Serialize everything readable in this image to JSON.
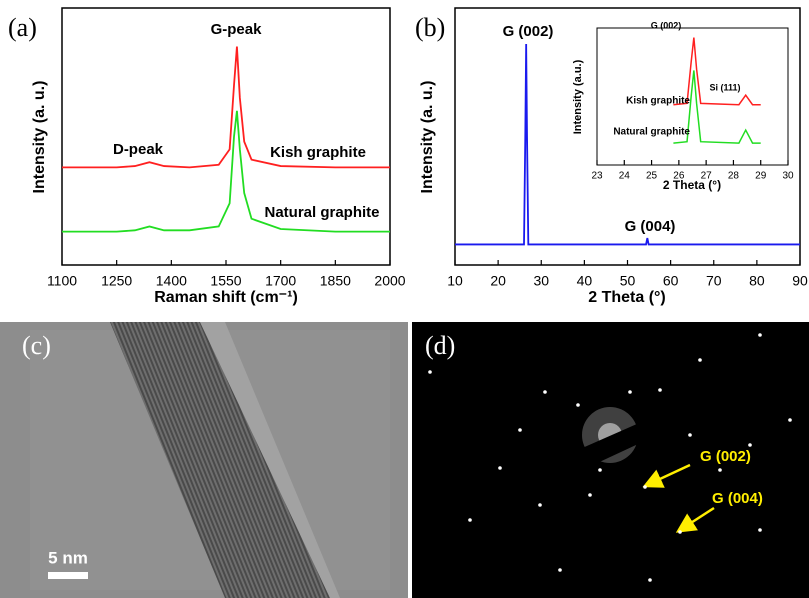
{
  "chart_data": [
    {
      "type": "line",
      "panel_label": "(a)",
      "xlabel": "Raman shift (cm⁻¹)",
      "ylabel": "Intensity (a. u.)",
      "x": [
        1100,
        1250,
        1300,
        1340,
        1380,
        1450,
        1530,
        1560,
        1572,
        1580,
        1588,
        1600,
        1620,
        1700,
        1850,
        2000
      ],
      "series": [
        {
          "name": "Kish graphite",
          "color": "#ff2020",
          "values": [
            38,
            38,
            38.5,
            40,
            38.5,
            38,
            39,
            45,
            70,
            85,
            65,
            48,
            41,
            38.5,
            38,
            38
          ]
        },
        {
          "name": "Natural graphite",
          "color": "#22dd22",
          "values": [
            13,
            13,
            13.5,
            15,
            13.5,
            13.5,
            15,
            24,
            50,
            60,
            45,
            28,
            18,
            14,
            13,
            13
          ]
        }
      ],
      "annotations": [
        "D-peak",
        "G-peak"
      ],
      "xlim": [
        1100,
        2000
      ],
      "xticks": [
        1100,
        1250,
        1400,
        1550,
        1700,
        1850,
        2000
      ],
      "ylim": [
        0,
        100
      ]
    },
    {
      "type": "line",
      "panel_label": "(b)",
      "xlabel": "2 Theta (°)",
      "ylabel": "Intensity (a. u.)",
      "x": [
        10,
        26,
        26.3,
        26.5,
        26.7,
        27,
        54.3,
        54.6,
        54.9,
        90
      ],
      "series": [
        {
          "color": "#1a1aee",
          "values": [
            8,
            8,
            50,
            86,
            50,
            8,
            8,
            10.5,
            8,
            8
          ]
        }
      ],
      "annotations": [
        "G (002)",
        "G (004)"
      ],
      "xlim": [
        10,
        90
      ],
      "xticks": [
        10,
        20,
        30,
        40,
        50,
        60,
        70,
        80,
        90
      ],
      "ylim": [
        0,
        100
      ]
    },
    {
      "type": "line",
      "xlabel": "2 Theta (°)",
      "ylabel": "Intensity (a.u.)",
      "x": [
        25.8,
        26.3,
        26.45,
        26.55,
        26.65,
        26.8,
        28.2,
        28.45,
        28.7,
        29
      ],
      "series": [
        {
          "name": "Kish graphite",
          "color": "#ff2020",
          "values": [
            44,
            45,
            75,
            93,
            70,
            45,
            44,
            51,
            44,
            44
          ]
        },
        {
          "name": "Natural graphite",
          "color": "#22dd22",
          "values": [
            16,
            17,
            50,
            69,
            45,
            17,
            16,
            25.5,
            16,
            16
          ]
        }
      ],
      "annotations": [
        "G (002)",
        "Si (111)"
      ],
      "xlim": [
        23,
        30
      ],
      "xticks": [
        23,
        24,
        25,
        26,
        27,
        28,
        29,
        30
      ],
      "ylim": [
        0,
        100
      ]
    }
  ],
  "images": [
    {
      "panel_label": "(c)",
      "scale_bar": "5 nm"
    },
    {
      "panel_label": "(d)",
      "annotations": [
        "G (002)",
        "G (004)"
      ]
    }
  ]
}
